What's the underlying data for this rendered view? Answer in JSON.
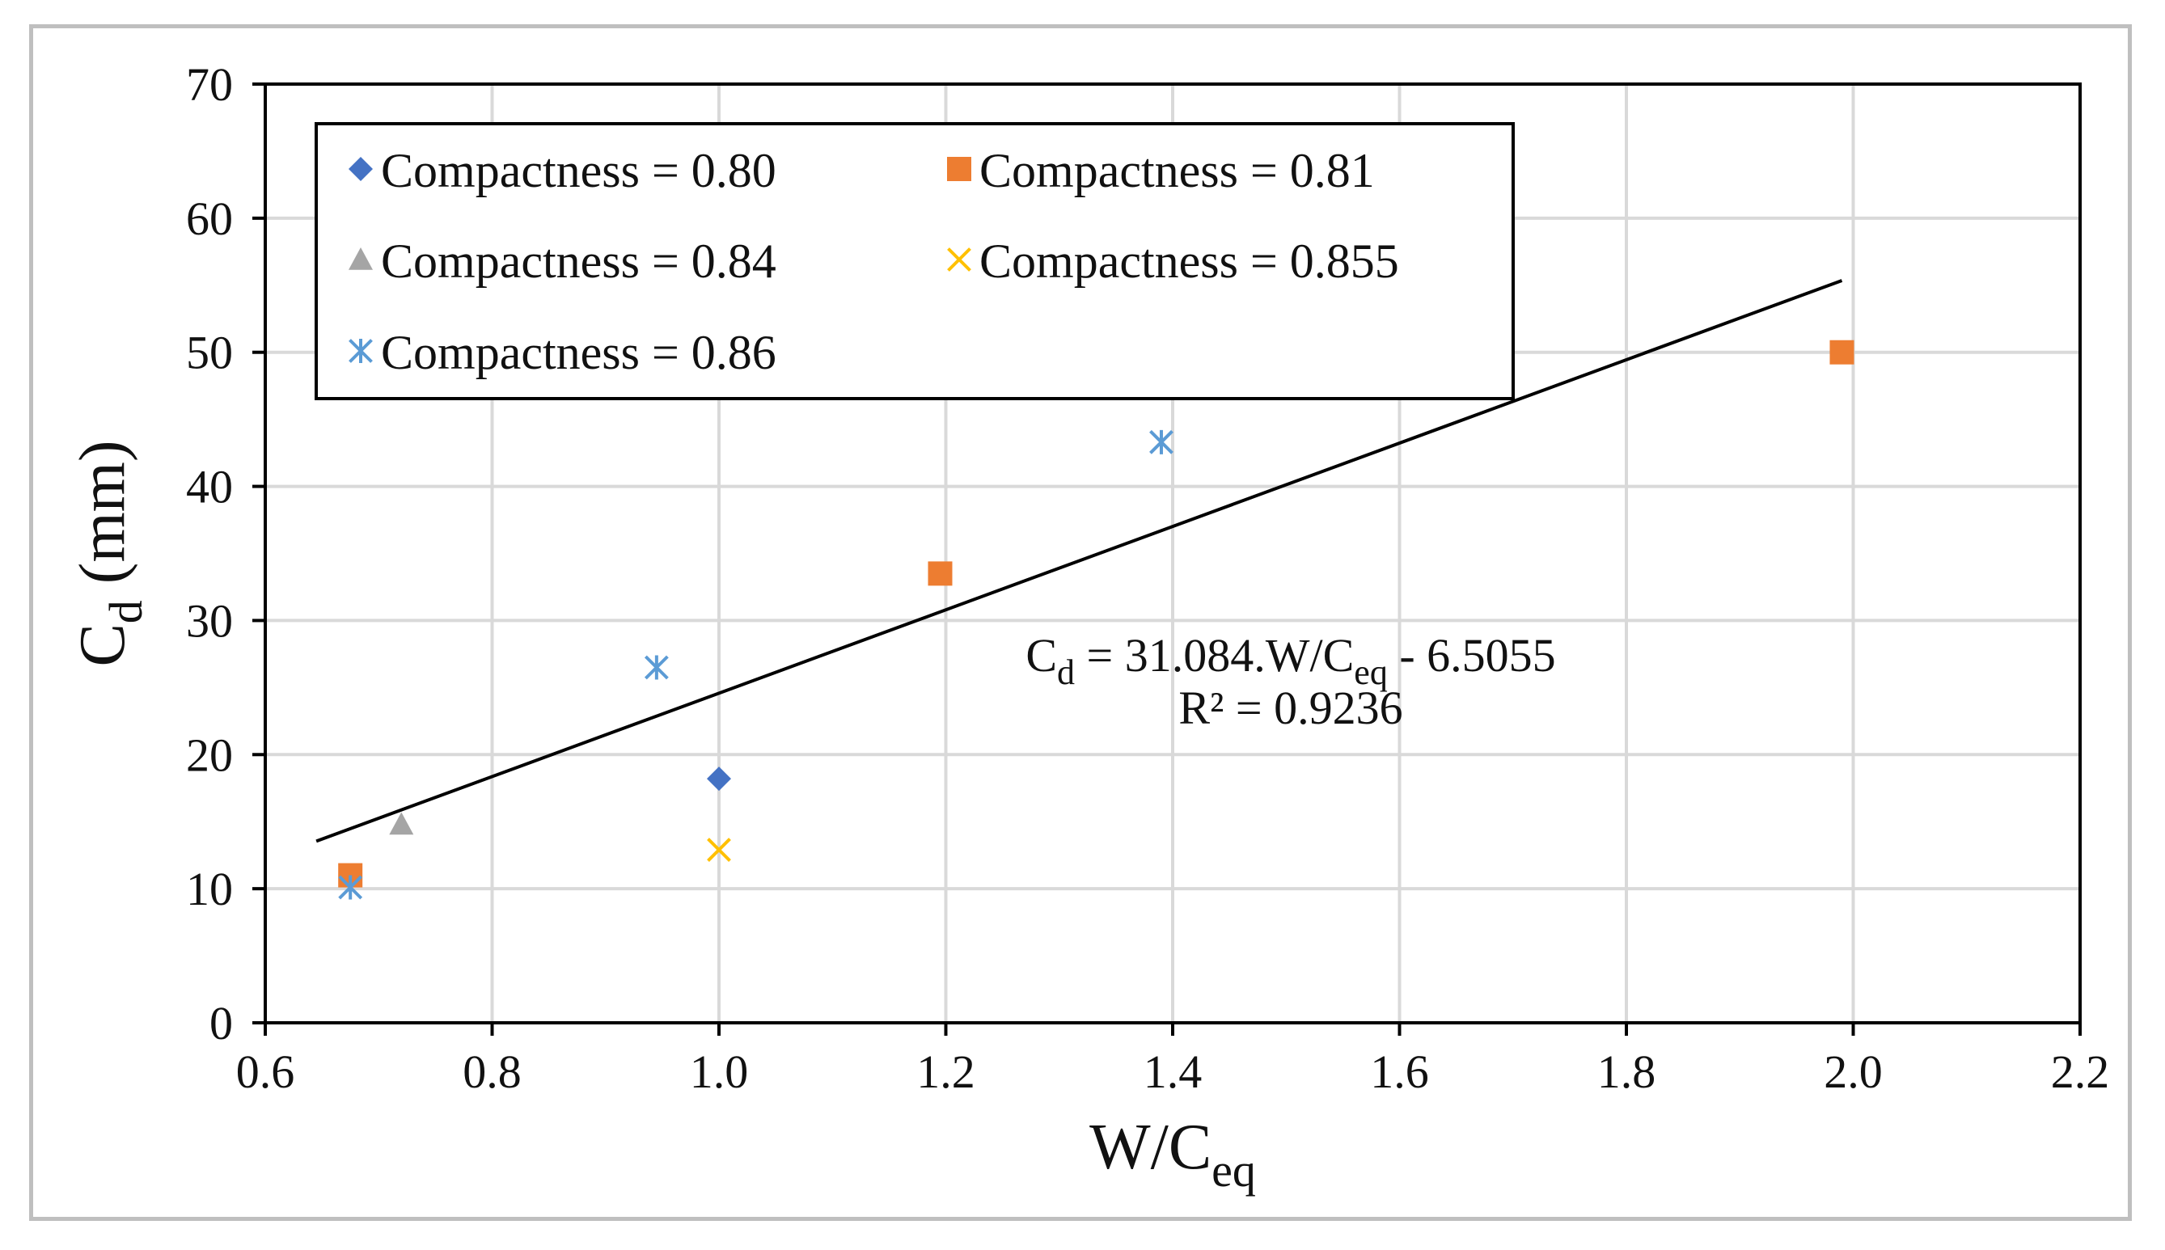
{
  "chart_data": {
    "type": "scatter",
    "title": "",
    "xlabel": {
      "main": "W/C",
      "sub": "eq"
    },
    "ylabel": {
      "main": "C",
      "sub": "d",
      "rest": " (mm)"
    },
    "xlim": [
      0.6,
      2.2
    ],
    "ylim": [
      0,
      70
    ],
    "xticks": [
      0.6,
      0.8,
      1.0,
      1.2,
      1.4,
      1.6,
      1.8,
      2.0,
      2.2
    ],
    "xtick_labels": [
      "0.6",
      "0.8",
      "1.0",
      "1.2",
      "1.4",
      "1.6",
      "1.8",
      "2.0",
      "2.2"
    ],
    "yticks": [
      0,
      10,
      20,
      30,
      40,
      50,
      60,
      70
    ],
    "ytick_labels": [
      "0",
      "10",
      "20",
      "30",
      "40",
      "50",
      "60",
      "70"
    ],
    "grid": true,
    "legend_position": "top-left",
    "series": [
      {
        "name": "Compactness = 0.80",
        "marker": "diamond",
        "color": "#4472c4",
        "points": [
          [
            1.0,
            18.2
          ]
        ]
      },
      {
        "name": "Compactness = 0.81",
        "marker": "square",
        "color": "#ed7d31",
        "points": [
          [
            0.675,
            11.0
          ],
          [
            1.195,
            33.5
          ],
          [
            1.99,
            50.0
          ]
        ]
      },
      {
        "name": "Compactness = 0.84",
        "marker": "triangle",
        "color": "#a5a5a5",
        "points": [
          [
            0.72,
            14.8
          ]
        ]
      },
      {
        "name": "Compactness = 0.855",
        "marker": "x",
        "color": "#ffc000",
        "points": [
          [
            1.0,
            12.9
          ]
        ]
      },
      {
        "name": "Compactness = 0.86",
        "marker": "asterisk",
        "color": "#5b9bd5",
        "points": [
          [
            0.675,
            10.1
          ],
          [
            0.945,
            26.5
          ],
          [
            1.39,
            43.3
          ]
        ]
      }
    ],
    "trendline": {
      "slope": 31.084,
      "intercept": -6.5055,
      "x_range": [
        0.645,
        1.99
      ],
      "color": "#000000",
      "equation": {
        "lhs_main": "C",
        "lhs_sub": "d",
        "mid": " = 31.084.W/C",
        "mid_sub": "eq",
        "rhs": " - 6.5055"
      },
      "r2_label": "R² = 0.9236"
    }
  }
}
